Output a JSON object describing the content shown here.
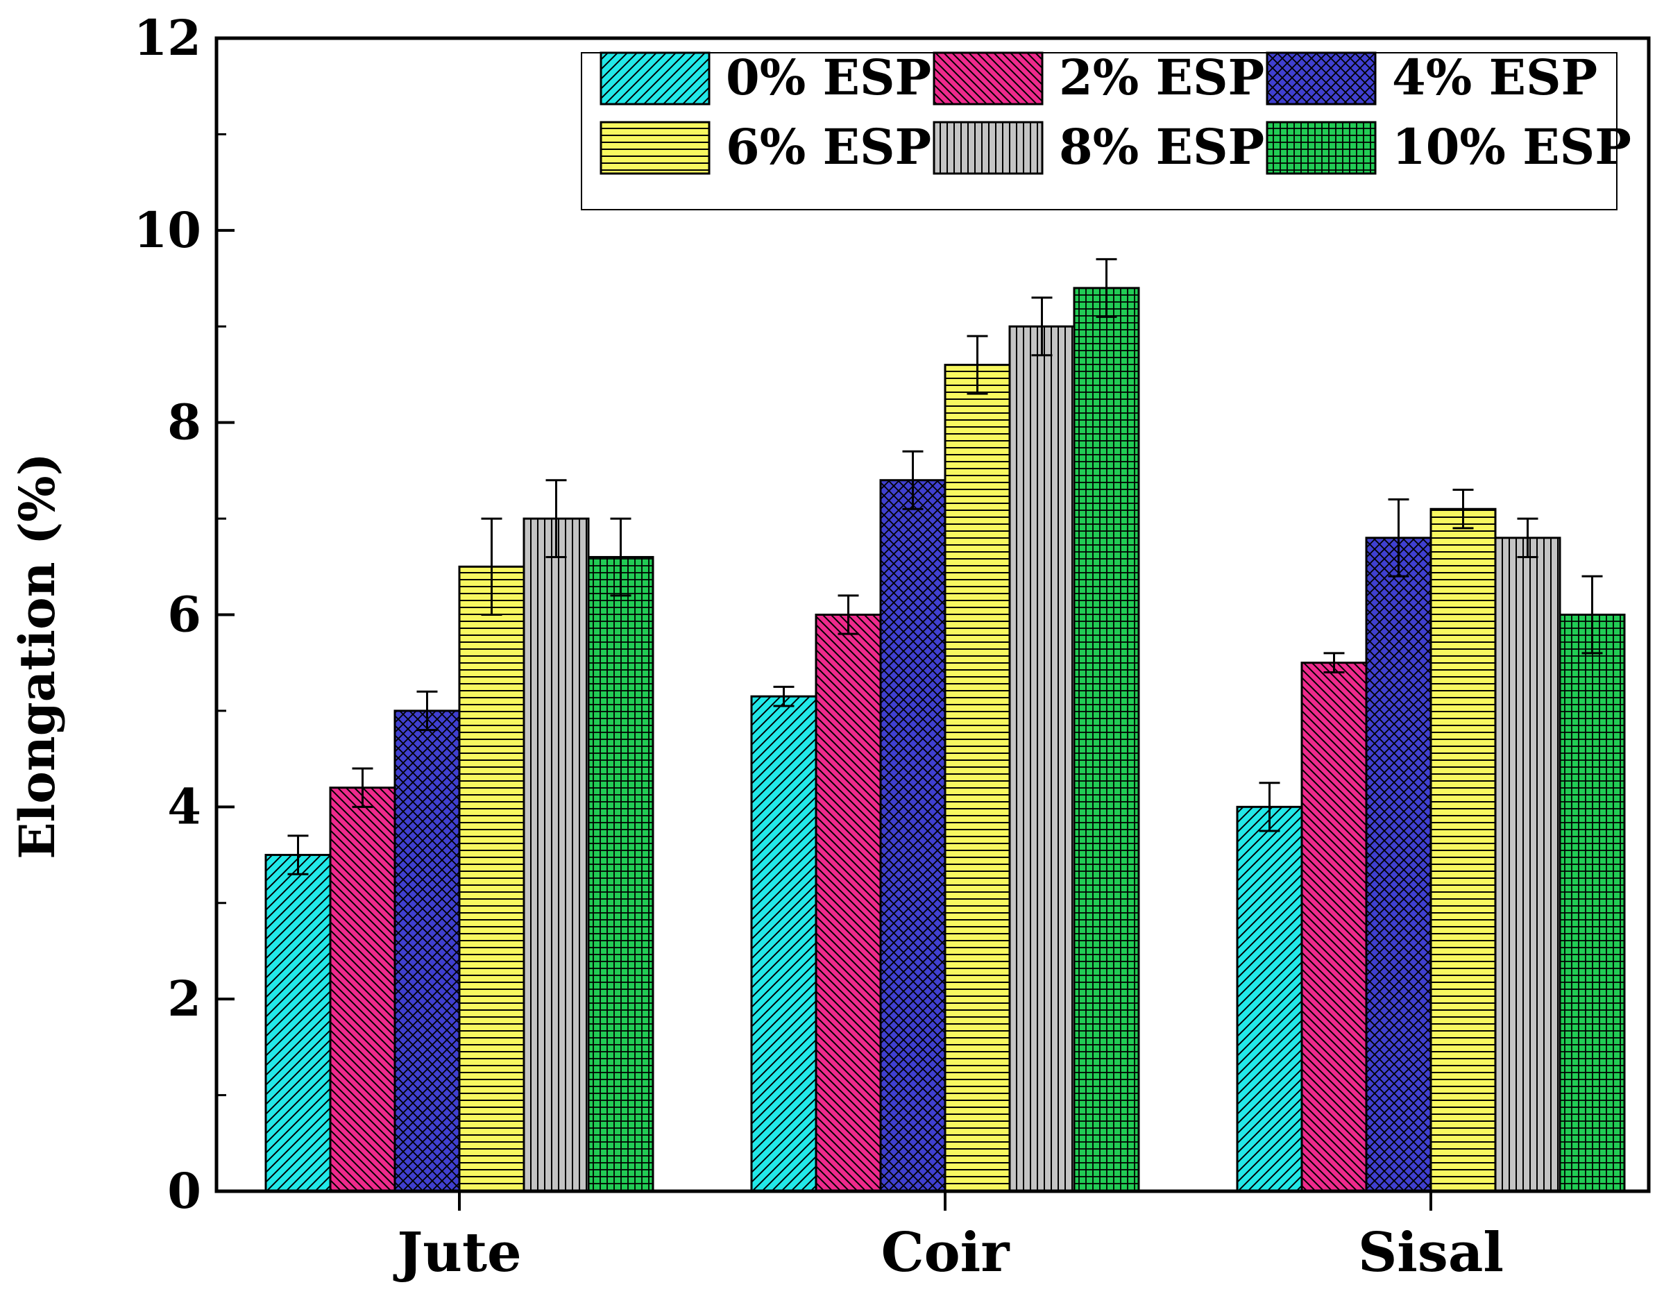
{
  "chart_data": {
    "type": "bar",
    "title": "",
    "xlabel": "",
    "ylabel": "Elongation (%)",
    "ylim": [
      0,
      12
    ],
    "yticks": [
      "0",
      "2",
      "4",
      "6",
      "8",
      "10",
      "12"
    ],
    "categories": [
      "Jute",
      "Coir",
      "Sisal"
    ],
    "legend_position": "top-right",
    "series": [
      {
        "name": "0% ESP",
        "color": "#22e8e8",
        "pattern": "diag-fwd",
        "values": [
          3.5,
          5.15,
          4.0
        ],
        "errors": [
          0.2,
          0.1,
          0.25
        ]
      },
      {
        "name": "2% ESP",
        "color": "#ee2a8c",
        "pattern": "diag-back",
        "values": [
          4.2,
          6.0,
          5.5
        ],
        "errors": [
          0.2,
          0.2,
          0.1
        ]
      },
      {
        "name": "4% ESP",
        "color": "#4040d0",
        "pattern": "crosshatch",
        "values": [
          5.0,
          7.4,
          6.8
        ],
        "errors": [
          0.2,
          0.3,
          0.4
        ]
      },
      {
        "name": "6% ESP",
        "color": "#f8f860",
        "pattern": "horizontal",
        "values": [
          6.5,
          8.6,
          7.1
        ],
        "errors": [
          0.5,
          0.3,
          0.2
        ]
      },
      {
        "name": "8% ESP",
        "color": "#c4c4c4",
        "pattern": "vertical",
        "values": [
          7.0,
          9.0,
          6.8
        ],
        "errors": [
          0.4,
          0.3,
          0.2
        ]
      },
      {
        "name": "10% ESP",
        "color": "#22cc55",
        "pattern": "grid",
        "values": [
          6.6,
          9.4,
          6.0
        ],
        "errors": [
          0.4,
          0.3,
          0.4
        ]
      }
    ]
  }
}
